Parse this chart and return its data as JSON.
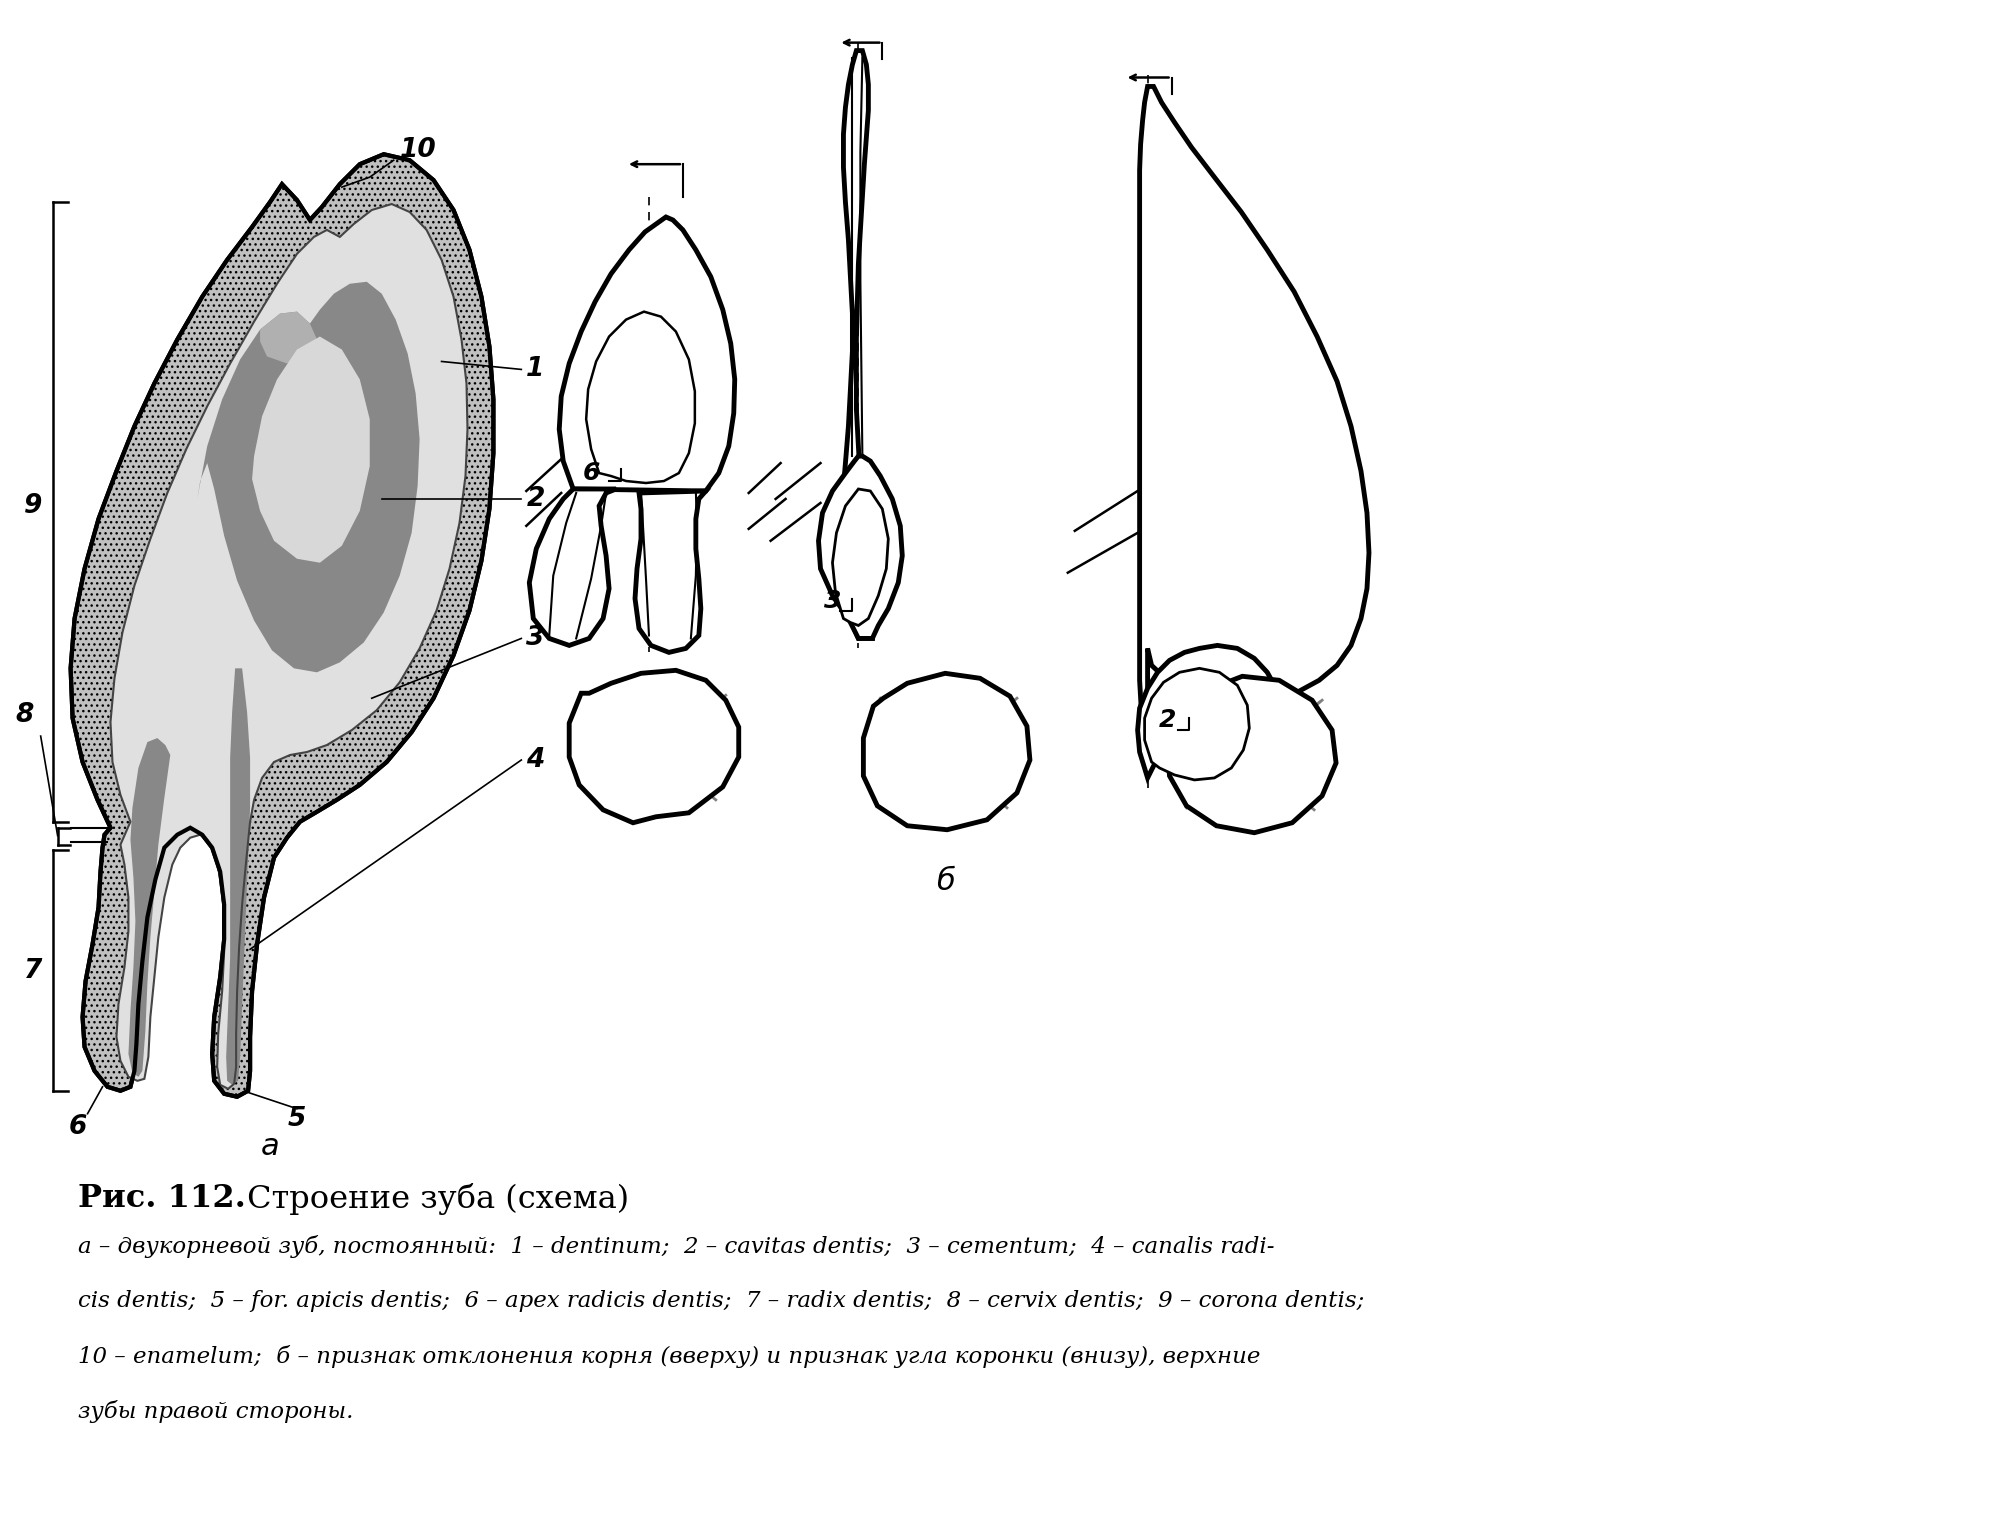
{
  "bg_color": "#ffffff",
  "title_bold": "Рис. 112.",
  "title_normal": " Строение зуба (схема)",
  "caption_line1": "а – двукорневой зуб, постоянный:  1 – dentinum;  2 – cavitas dentis;  3 – cementum;  4 – canalis radi-",
  "caption_line2": "cis dentis;  5 – for. apicis dentis;  6 – apex radicis dentis;  7 – radix dentis;  8 – cervix dentis;  9 – corona dentis;",
  "caption_line3": "10 – enamelum;  б – признак отклонения корня (вверху) и признак угла коронки (внизу), верхние",
  "caption_line4": "зубы правой стороны.",
  "label_a": "а",
  "label_b": "б"
}
